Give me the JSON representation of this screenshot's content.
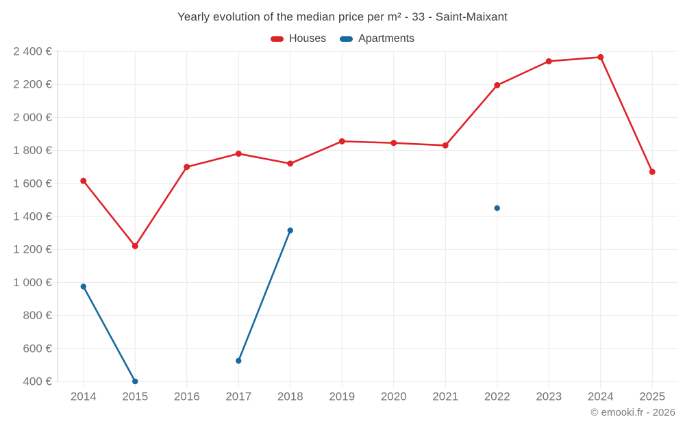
{
  "title": "Yearly evolution of the median price per m² - 33 - Saint-Maixant",
  "footer": "© emooki.fr - 2026",
  "colors": {
    "houses": "#df2328",
    "apartments": "#17699f",
    "grid": "#e9e9e9",
    "axis": "#c9c9c9",
    "tick_text": "#757575",
    "title_text": "#3c4043",
    "footer_text": "#7d7d7d"
  },
  "chart_data": {
    "type": "line",
    "title": "Yearly evolution of the median price per m² - 33 - Saint-Maixant",
    "categories": [
      "2014",
      "2015",
      "2016",
      "2017",
      "2018",
      "2019",
      "2020",
      "2021",
      "2022",
      "2023",
      "2024",
      "2025"
    ],
    "series": [
      {
        "name": "Houses",
        "color": "#df2328",
        "values": [
          1615,
          1220,
          1700,
          1780,
          1720,
          1855,
          1845,
          1830,
          2195,
          2340,
          2365,
          1670
        ]
      },
      {
        "name": "Apartments",
        "color": "#17699f",
        "values": [
          975,
          400,
          null,
          525,
          1315,
          null,
          null,
          null,
          1450,
          null,
          null,
          null
        ]
      }
    ],
    "ylim": [
      400,
      2400
    ],
    "yticks": [
      {
        "value": 400,
        "label": "400 €"
      },
      {
        "value": 600,
        "label": "600 €"
      },
      {
        "value": 800,
        "label": "800 €"
      },
      {
        "value": 1000,
        "label": "1 000 €"
      },
      {
        "value": 1200,
        "label": "1 200 €"
      },
      {
        "value": 1400,
        "label": "1 400 €"
      },
      {
        "value": 1600,
        "label": "1 600 €"
      },
      {
        "value": 1800,
        "label": "1 800 €"
      },
      {
        "value": 2000,
        "label": "2 000 €"
      },
      {
        "value": 2200,
        "label": "2 200 €"
      },
      {
        "value": 2400,
        "label": "2 400 €"
      }
    ],
    "legend_position": "top",
    "grid": true
  }
}
